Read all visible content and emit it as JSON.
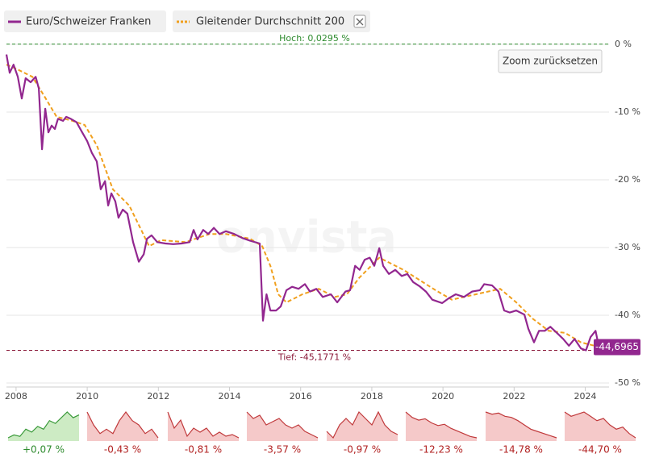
{
  "chart_data": {
    "type": "line",
    "legend": [
      "Euro/Schweizer Franken",
      "Gleitender Durchschnitt 200"
    ],
    "watermark": "onvista",
    "button": "Zoom zurücksetzen",
    "series": [
      {
        "name": "Euro/Schweizer Franken",
        "color": "#92278f",
        "dashed": false,
        "x": [
          2007.73,
          2007.82,
          2007.93,
          2008.05,
          2008.16,
          2008.27,
          2008.41,
          2008.55,
          2008.64,
          2008.73,
          2008.82,
          2008.91,
          2009.0,
          2009.09,
          2009.18,
          2009.32,
          2009.41,
          2009.54,
          2009.7,
          2009.86,
          2010.0,
          2010.13,
          2010.27,
          2010.38,
          2010.5,
          2010.59,
          2010.68,
          2010.79,
          2010.88,
          2011.0,
          2011.13,
          2011.29,
          2011.45,
          2011.59,
          2011.68,
          2011.81,
          2011.97,
          2012.2,
          2012.42,
          2012.65,
          2012.88,
          2012.99,
          2013.1,
          2013.26,
          2013.4,
          2013.56,
          2013.72,
          2013.9,
          2014.13,
          2014.36,
          2014.58,
          2014.85,
          2014.94,
          2015.04,
          2015.15,
          2015.31,
          2015.44,
          2015.6,
          2015.76,
          2015.94,
          2016.12,
          2016.26,
          2016.44,
          2016.62,
          2016.85,
          2017.03,
          2017.26,
          2017.39,
          2017.53,
          2017.66,
          2017.8,
          2017.94,
          2018.07,
          2018.21,
          2018.32,
          2018.48,
          2018.66,
          2018.84,
          2019.0,
          2019.16,
          2019.34,
          2019.52,
          2019.7,
          2019.98,
          2020.16,
          2020.36,
          2020.59,
          2020.82,
          2021.04,
          2021.16,
          2021.38,
          2021.56,
          2021.72,
          2021.88,
          2022.06,
          2022.29,
          2022.4,
          2022.56,
          2022.7,
          2022.86,
          2023.02,
          2023.2,
          2023.38,
          2023.54,
          2023.7,
          2023.88,
          2024.02,
          2024.15,
          2024.29,
          2024.38,
          2024.6
        ],
        "values": [
          -1.5,
          -4.2,
          -3,
          -4.8,
          -8,
          -5,
          -5.6,
          -4.8,
          -6.5,
          -15.5,
          -9.5,
          -13,
          -12,
          -12.5,
          -11,
          -11.3,
          -10.7,
          -11,
          -11.5,
          -13,
          -14.3,
          -16,
          -17.3,
          -21.4,
          -20.2,
          -23.8,
          -22,
          -23.2,
          -25.6,
          -24.4,
          -25,
          -29.2,
          -32.1,
          -31,
          -28.7,
          -28.2,
          -29.2,
          -29.4,
          -29.5,
          -29.4,
          -29.2,
          -27.4,
          -28.8,
          -27.4,
          -28,
          -27.1,
          -28,
          -27.6,
          -28,
          -28.6,
          -29,
          -29.4,
          -40.8,
          -36.9,
          -39.3,
          -39.3,
          -38.7,
          -36.3,
          -35.8,
          -36.1,
          -35.4,
          -36.5,
          -36.1,
          -37.3,
          -36.9,
          -38.1,
          -36.5,
          -36.3,
          -32.7,
          -33.3,
          -31.8,
          -31.5,
          -32.7,
          -30.1,
          -32.7,
          -33.9,
          -33.3,
          -34.2,
          -33.9,
          -35.1,
          -35.7,
          -36.5,
          -37.7,
          -38.2,
          -37.5,
          -36.9,
          -37.3,
          -36.5,
          -36.3,
          -35.4,
          -35.6,
          -36.5,
          -39.3,
          -39.6,
          -39.3,
          -39.9,
          -42,
          -44,
          -42.3,
          -42.3,
          -41.7,
          -42.6,
          -43.5,
          -44.5,
          -43.5,
          -44.9,
          -45.18,
          -43.2,
          -42.3,
          -44.6,
          -44.7
        ]
      },
      {
        "name": "Gleitender Durchschnitt 200",
        "color": "#f0a01e",
        "dashed": true,
        "x": [
          2007.73,
          2008.0,
          2008.46,
          2008.8,
          2009.14,
          2009.59,
          2009.93,
          2010.27,
          2010.72,
          2011.18,
          2011.52,
          2011.74,
          2012.08,
          2012.76,
          2013.44,
          2013.9,
          2014.58,
          2014.92,
          2015.15,
          2015.37,
          2015.6,
          2016.05,
          2016.51,
          2016.96,
          2017.3,
          2017.64,
          2018.21,
          2018.89,
          2019.79,
          2020.25,
          2020.93,
          2021.61,
          2022.06,
          2022.52,
          2022.97,
          2023.43,
          2023.88,
          2024.33,
          2024.6
        ],
        "values": [
          -3,
          -3.6,
          -4.8,
          -7.7,
          -10.7,
          -11.3,
          -11.9,
          -14.9,
          -21.4,
          -23.8,
          -27.4,
          -29.8,
          -28.9,
          -29.2,
          -28,
          -28,
          -28.7,
          -29.8,
          -32.7,
          -36.9,
          -38.1,
          -36.9,
          -36.1,
          -37.3,
          -36.9,
          -34.5,
          -31.5,
          -33.3,
          -36.3,
          -37.7,
          -36.9,
          -36.1,
          -38.1,
          -40.5,
          -42.3,
          -42.6,
          -44,
          -44.6,
          -44
        ]
      }
    ],
    "xlim": [
      2007.73,
      2024.6
    ],
    "xticks": [
      2008,
      2010,
      2012,
      2014,
      2016,
      2018,
      2020,
      2022,
      2024
    ],
    "ylim": [
      -50,
      0
    ],
    "yticks": [
      {
        "value": -50,
        "label": "-50 %"
      },
      {
        "value": -40,
        "label": "-40 %"
      },
      {
        "value": -30,
        "label": "-30 %"
      },
      {
        "value": -20,
        "label": "-20 %"
      },
      {
        "value": -10,
        "label": "-10 %"
      },
      {
        "value": 0,
        "label": "0 %"
      }
    ],
    "grid": true,
    "high": {
      "value": 0.0295,
      "label": "Hoch: 0,0295 %"
    },
    "low": {
      "value": -45.1771,
      "label": "Tief: -45,1771 %"
    },
    "last": {
      "value": -44.6965,
      "label": "-44,6965"
    },
    "sparklines": [
      {
        "values": [
          -8,
          -7,
          -7.5,
          -5,
          -6,
          -4,
          -5,
          -2,
          -3,
          -1,
          1,
          -1,
          0
        ],
        "change": 0.07,
        "change_label": "+0,07 %"
      },
      {
        "values": [
          0,
          -1.5,
          -2.5,
          -2,
          -2.5,
          -1,
          0,
          -1,
          -1.5,
          -2.5,
          -2,
          -3
        ],
        "change": -0.43,
        "change_label": "-0,43 %"
      },
      {
        "values": [
          0,
          -2,
          -1,
          -3,
          -2,
          -2.5,
          -2,
          -3,
          -2.5,
          -3,
          -2.8,
          -3.2
        ],
        "change": -0.81,
        "change_label": "-0,81 %"
      },
      {
        "values": [
          0,
          -1,
          -0.5,
          -2,
          -1.5,
          -1,
          -2,
          -2.5,
          -2,
          -3,
          -3.5,
          -4
        ],
        "change": -3.57,
        "change_label": "-3,57 %"
      },
      {
        "values": [
          -3,
          -4,
          -2,
          -1,
          -2,
          0,
          -1,
          -2,
          0,
          -2,
          -3,
          -3.5
        ],
        "change": -0.97,
        "change_label": "-0,97 %"
      },
      {
        "values": [
          0,
          -2,
          -3,
          -2.5,
          -4,
          -5,
          -4.5,
          -6,
          -7,
          -8,
          -9,
          -9.5
        ],
        "change": -12.23,
        "change_label": "-12,23 %"
      },
      {
        "values": [
          0,
          -1,
          -0.5,
          -2,
          -2.5,
          -4,
          -6,
          -8,
          -9,
          -10,
          -11,
          -12
        ],
        "change": -14.78,
        "change_label": "-14,78 %"
      },
      {
        "values": [
          0,
          -1,
          -0.5,
          0,
          -1,
          -2,
          -1.5,
          -3,
          -4,
          -3.5,
          -5,
          -6
        ],
        "change": -44.7,
        "change_label": "-44,70 %"
      }
    ]
  }
}
